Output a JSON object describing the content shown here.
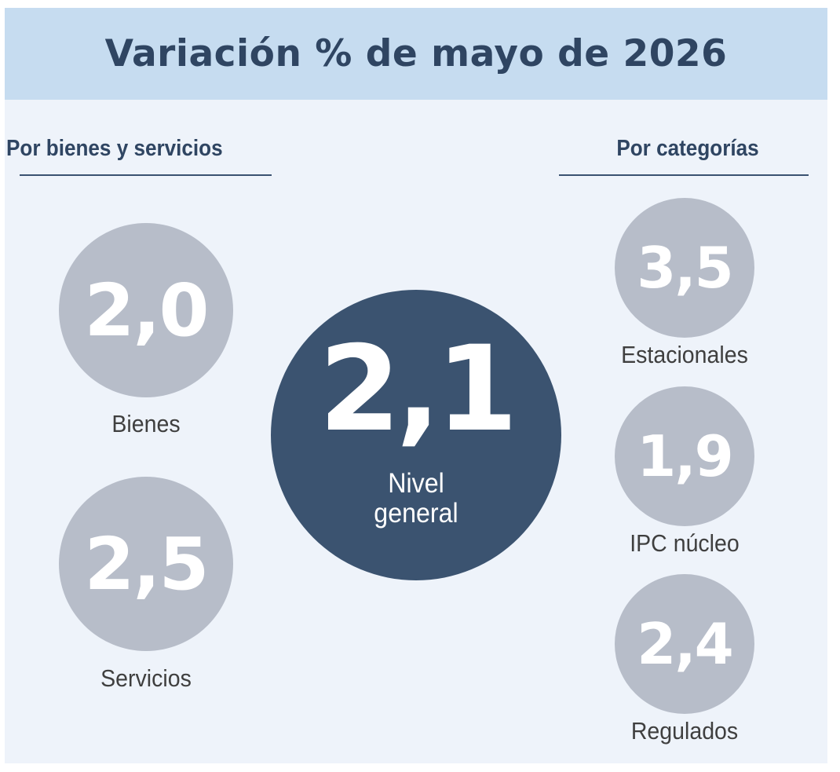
{
  "title": "Variación % de mayo de 2026",
  "left_section": {
    "heading": "Por bienes y servicios",
    "items": [
      {
        "value": "2,0",
        "label": "Bienes"
      },
      {
        "value": "2,5",
        "label": "Servicios"
      }
    ]
  },
  "center": {
    "value": "2,1",
    "label_line1": "Nivel",
    "label_line2": "general"
  },
  "right_section": {
    "heading": "Por categorías",
    "items": [
      {
        "value": "3,5",
        "label": "Estacionales"
      },
      {
        "value": "1,9",
        "label": "IPC núcleo"
      },
      {
        "value": "2,4",
        "label": "Regulados"
      }
    ]
  },
  "colors": {
    "header_bg": "#c6dcf0",
    "panel_bg": "#eef3fa",
    "primary_dark": "#3b5370",
    "circle_gray": "#b7bdc9"
  }
}
